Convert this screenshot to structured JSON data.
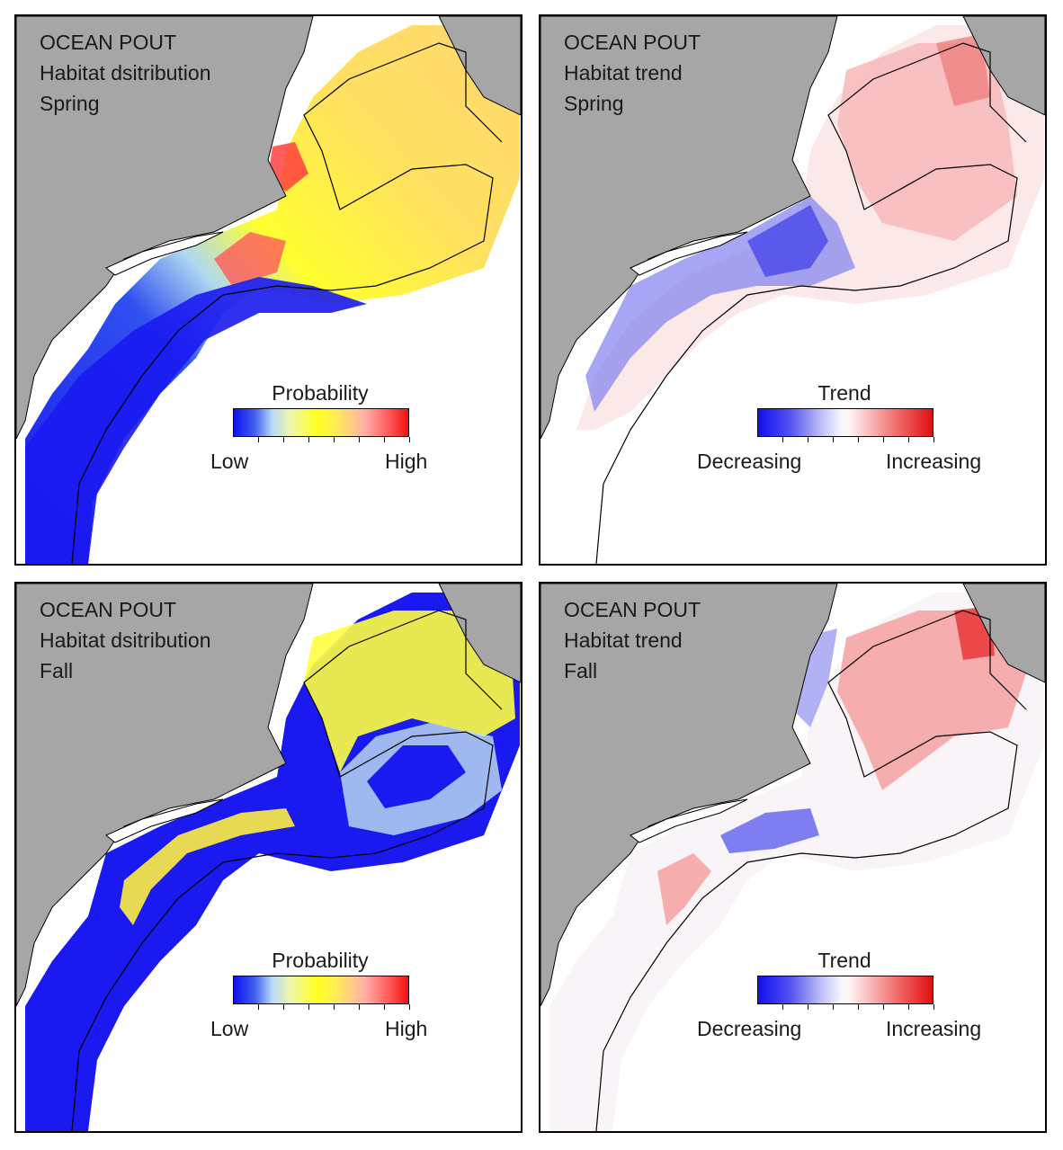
{
  "panels": [
    {
      "id": "spring-distribution",
      "line1": "OCEAN POUT",
      "line2": "Habitat dsitribution",
      "line3": "Spring",
      "legend": {
        "title": "Probability",
        "low": "Low",
        "high": "High",
        "kind": "probability"
      }
    },
    {
      "id": "spring-trend",
      "line1": "OCEAN POUT",
      "line2": "Habitat trend",
      "line3": "Spring",
      "legend": {
        "title": "Trend",
        "low": "Decreasing",
        "high": "Increasing",
        "kind": "trend"
      }
    },
    {
      "id": "fall-distribution",
      "line1": "OCEAN POUT",
      "line2": "Habitat dsitribution",
      "line3": "Fall",
      "legend": {
        "title": "Probability",
        "low": "Low",
        "high": "High",
        "kind": "probability"
      }
    },
    {
      "id": "fall-trend",
      "line1": "OCEAN POUT",
      "line2": "Habitat trend",
      "line3": "Fall",
      "legend": {
        "title": "Trend",
        "low": "Decreasing",
        "high": "Increasing",
        "kind": "trend"
      }
    }
  ],
  "colors": {
    "land": "#a6a6a6",
    "water": "#ffffff",
    "coast_line": "#000000"
  }
}
